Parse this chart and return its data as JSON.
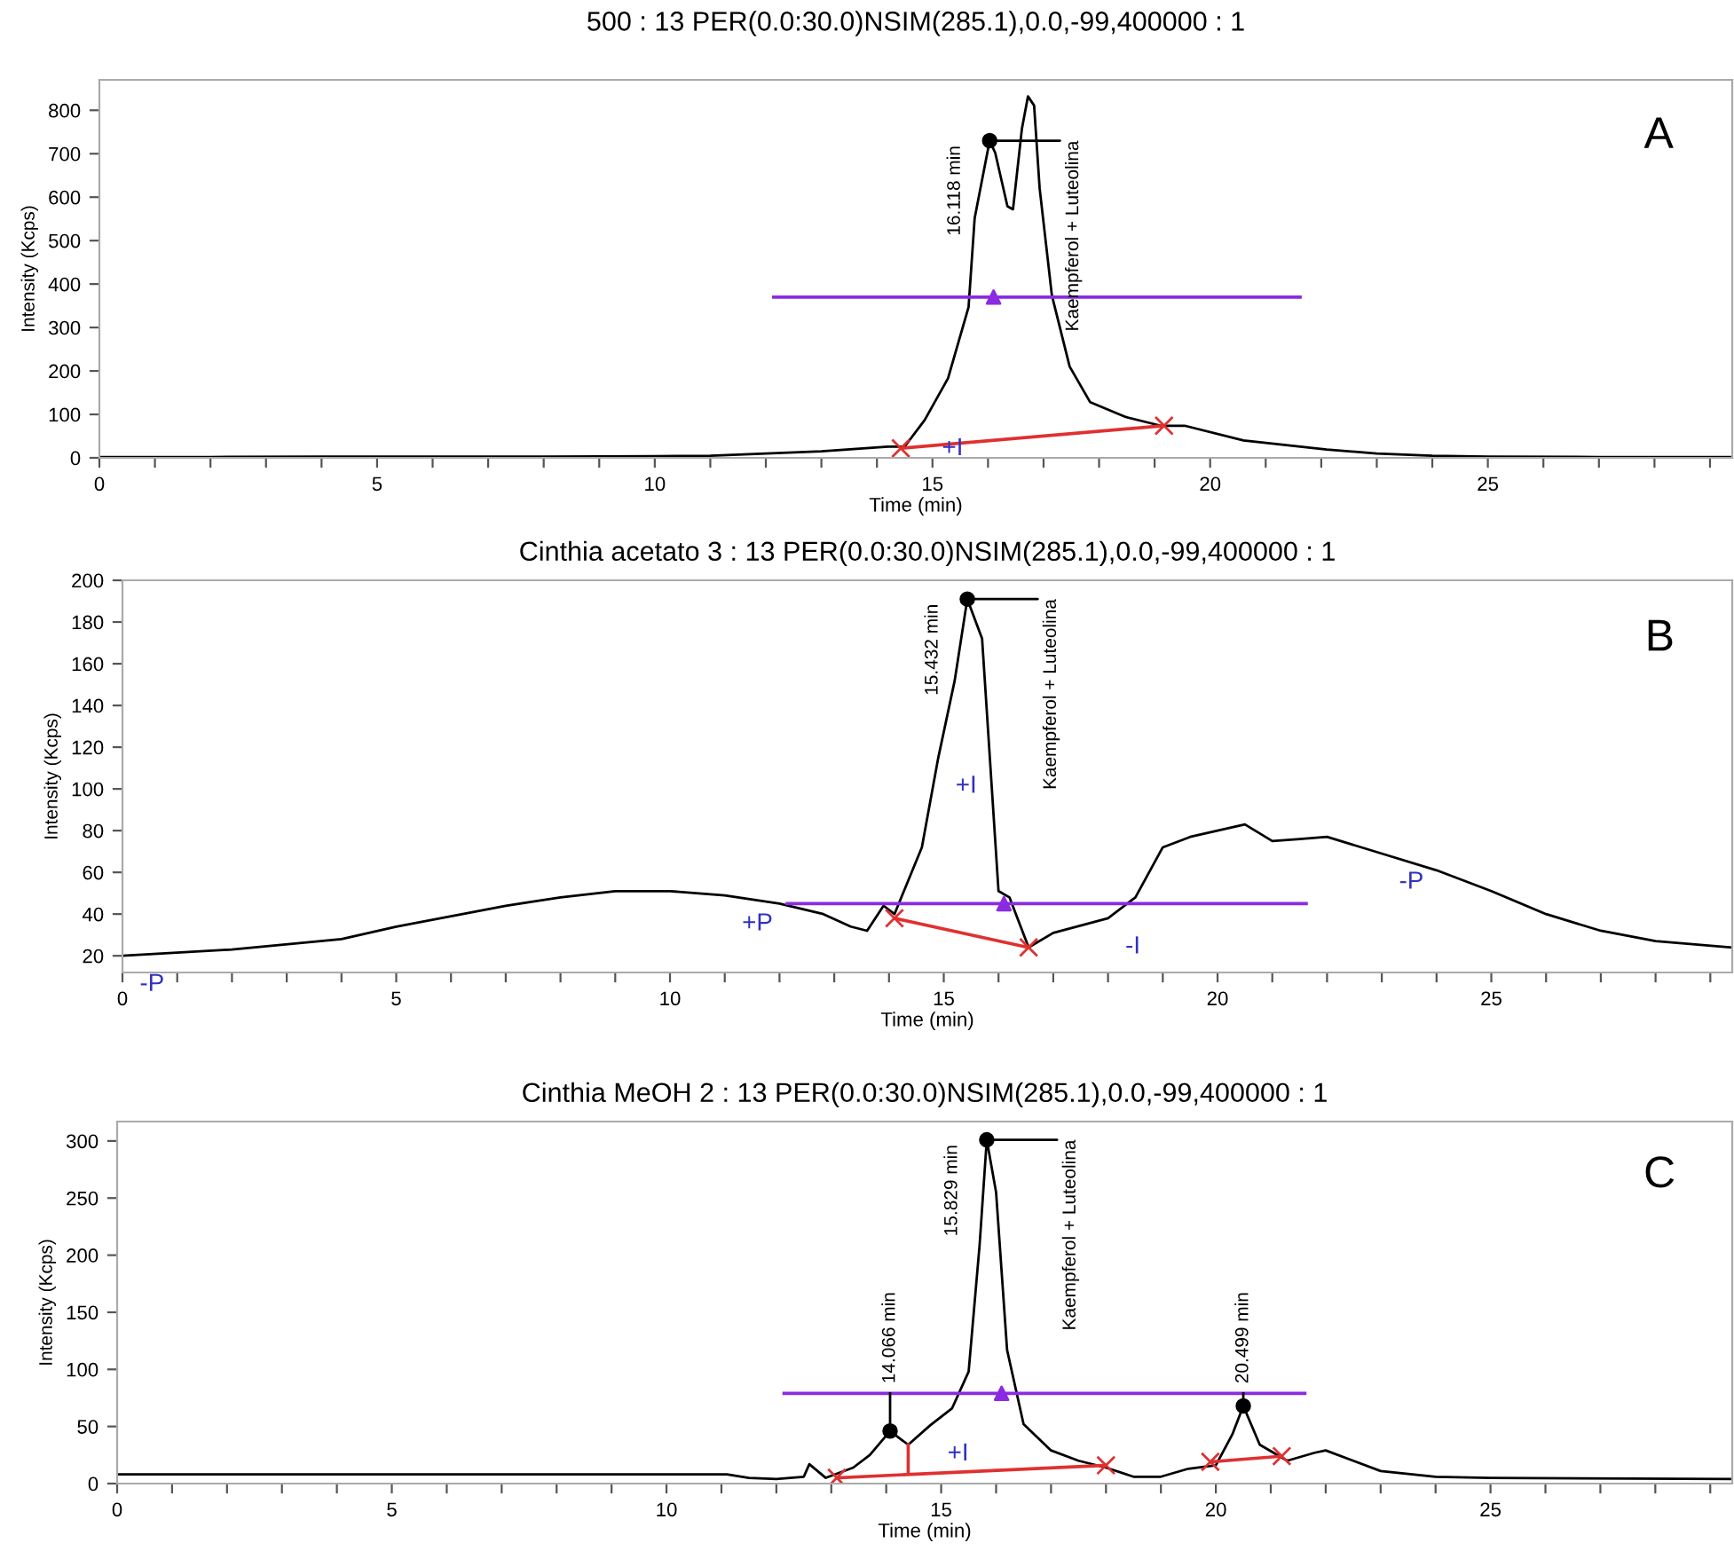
{
  "chart_data": [
    {
      "type": "line",
      "title": "500 : 13 PER(0.0:30.0)NSIM(285.1),0.0,-99,400000 : 1",
      "xlabel": "Time (min)",
      "ylabel": "Intensity (Kcps)",
      "xlim": [
        0,
        29.4
      ],
      "ylim": [
        0,
        870
      ],
      "xticks": [
        0,
        {
          "value": 1,
          "label": null
        },
        {
          "value": 2,
          "label": null
        },
        {
          "value": 3,
          "label": null
        },
        {
          "value": 4,
          "label": null
        },
        5,
        {
          "value": 6,
          "label": null
        },
        {
          "value": 7,
          "label": null
        },
        {
          "value": 8,
          "label": null
        },
        {
          "value": 9,
          "label": null
        },
        10,
        {
          "value": 11,
          "label": null
        },
        {
          "value": 12,
          "label": null
        },
        {
          "value": 13,
          "label": null
        },
        {
          "value": 14,
          "label": null
        },
        15,
        {
          "value": 16,
          "label": null
        },
        {
          "value": 17,
          "label": null
        },
        {
          "value": 18,
          "label": null
        },
        {
          "value": 19,
          "label": null
        },
        20,
        {
          "value": 21,
          "label": null
        },
        {
          "value": 22,
          "label": null
        },
        {
          "value": 23,
          "label": null
        },
        {
          "value": 24,
          "label": null
        },
        25,
        {
          "value": 26,
          "label": null
        },
        {
          "value": 27,
          "label": null
        },
        {
          "value": 28,
          "label": null
        },
        {
          "value": 29,
          "label": null
        }
      ],
      "yticks": [
        0,
        100,
        200,
        300,
        400,
        500,
        600,
        700,
        800
      ],
      "grid": false,
      "legend": false,
      "series": [
        {
          "color": "#000000",
          "marker": "none",
          "x": [
            0,
            2,
            4,
            6,
            8,
            10,
            11,
            12,
            13,
            14.2,
            14.5,
            14.86,
            15.28,
            15.65,
            15.76,
            16.03,
            16.13,
            16.35,
            16.45,
            16.61,
            16.72,
            16.83,
            16.93,
            17.15,
            17.47,
            17.84,
            18.48,
            19.11,
            19.54,
            20.6,
            22.1,
            23,
            24,
            25,
            27,
            29.4
          ],
          "values": [
            2,
            2,
            3,
            3,
            3,
            4,
            5,
            10,
            15,
            26,
            26,
            87,
            183,
            347,
            552,
            730,
            702,
            579,
            572,
            757,
            832,
            811,
            620,
            374,
            210,
            128,
            94,
            74,
            74,
            40,
            19,
            10,
            5,
            3,
            2,
            2
          ]
        },
        {
          "color": "#e03030",
          "marker": "cross",
          "x": [
            14.43,
            19.17
          ],
          "values": [
            22,
            74
          ]
        },
        {
          "color": "#8a2be2",
          "marker": "none",
          "x": [
            12.14,
            21.62
          ],
          "values": [
            370,
            370
          ]
        },
        {
          "type": "scatter",
          "color": "#000000",
          "marker": "circle",
          "x": [
            16.03
          ],
          "values": [
            730
          ]
        },
        {
          "type": "scatter",
          "color": "#8a2be2",
          "marker": "triangle",
          "x": [
            16.1
          ],
          "values": [
            370
          ]
        }
      ],
      "annotations": [
        "A",
        {
          "text": "16.118 min",
          "x": 16.03,
          "y": 730
        },
        {
          "text": "Kaempferol + Luteolina",
          "x": 16.03,
          "y": 730
        },
        {
          "text": "+I",
          "x": 14.86,
          "y": 87
        }
      ]
    },
    {
      "type": "line",
      "title": "Cinthia acetato 3 : 13 PER(0.0:30.0)NSIM(285.1),0.0,-99,400000 : 1",
      "xlabel": "Time (min)",
      "ylabel": "Intensity (Kcps)",
      "xlim": [
        0,
        29.4
      ],
      "ylim": [
        12,
        200
      ],
      "xticks": [
        0,
        {
          "value": 1,
          "label": null
        },
        {
          "value": 2,
          "label": null
        },
        {
          "value": 3,
          "label": null
        },
        {
          "value": 4,
          "label": null
        },
        5,
        {
          "value": 6,
          "label": null
        },
        {
          "value": 7,
          "label": null
        },
        {
          "value": 8,
          "label": null
        },
        {
          "value": 9,
          "label": null
        },
        10,
        {
          "value": 11,
          "label": null
        },
        {
          "value": 12,
          "label": null
        },
        {
          "value": 13,
          "label": null
        },
        {
          "value": 14,
          "label": null
        },
        15,
        {
          "value": 16,
          "label": null
        },
        {
          "value": 17,
          "label": null
        },
        {
          "value": 18,
          "label": null
        },
        {
          "value": 19,
          "label": null
        },
        20,
        {
          "value": 21,
          "label": null
        },
        {
          "value": 22,
          "label": null
        },
        {
          "value": 23,
          "label": null
        },
        {
          "value": 24,
          "label": null
        },
        25,
        {
          "value": 26,
          "label": null
        },
        {
          "value": 27,
          "label": null
        },
        {
          "value": 28,
          "label": null
        },
        {
          "value": 29,
          "label": null
        }
      ],
      "yticks": [
        20,
        40,
        60,
        80,
        100,
        120,
        140,
        160,
        180,
        200
      ],
      "grid": false,
      "legend": false,
      "series": [
        {
          "color": "#000000",
          "marker": "none",
          "x": [
            0,
            2,
            4,
            5,
            6,
            7,
            8,
            9,
            10,
            11,
            12,
            12.8,
            13.3,
            13.6,
            13.9,
            14.1,
            14.6,
            14.9,
            15.2,
            15.43,
            15.7,
            16.0,
            16.2,
            16.55,
            17,
            18,
            18.5,
            19,
            19.5,
            20,
            20.5,
            21,
            21.5,
            22,
            23,
            24,
            25,
            26,
            27,
            28,
            29.4
          ],
          "values": [
            20,
            23,
            28,
            34,
            39,
            44,
            48,
            51,
            51,
            49,
            45,
            40,
            34,
            32,
            44,
            40,
            72,
            115,
            152,
            191,
            172,
            51,
            48,
            24,
            31,
            38,
            48,
            72,
            77,
            80,
            83,
            75,
            76,
            77,
            69,
            61,
            51,
            40,
            32,
            27,
            24
          ]
        },
        {
          "color": "#e03030",
          "marker": "cross",
          "x": [
            14.1,
            16.55
          ],
          "values": [
            38,
            24
          ]
        },
        {
          "color": "#8a2be2",
          "marker": "none",
          "x": [
            12.14,
            21.62
          ],
          "values": [
            45,
            45
          ]
        },
        {
          "type": "scatter",
          "color": "#000000",
          "marker": "circle",
          "x": [
            15.43
          ],
          "values": [
            191
          ]
        },
        {
          "type": "scatter",
          "color": "#8a2be2",
          "marker": "triangle",
          "x": [
            16.1
          ],
          "values": [
            45
          ]
        }
      ],
      "annotations": [
        "B",
        {
          "text": "15.432 min",
          "x": 15.43,
          "y": 191
        },
        {
          "text": "Kaempferol + Luteolina",
          "x": 15.43,
          "y": 191
        },
        {
          "text": "-P",
          "x": 0,
          "y": 20
        },
        {
          "text": "+P",
          "x": 11,
          "y": 49
        },
        {
          "text": "+I",
          "x": 14.9,
          "y": 115
        },
        {
          "text": "-I",
          "x": 18,
          "y": 38
        },
        {
          "text": "-P",
          "x": 23,
          "y": 69
        }
      ]
    },
    {
      "type": "line",
      "title": "Cinthia MeOH 2 : 13 PER(0.0:30.0)NSIM(285.1),0.0,-99,400000 : 1",
      "xlabel": "Time (min)",
      "ylabel": "Intensity (Kcps)",
      "xlim": [
        0,
        29.4
      ],
      "ylim": [
        0,
        317
      ],
      "xticks": [
        0,
        {
          "value": 1,
          "label": null
        },
        {
          "value": 2,
          "label": null
        },
        {
          "value": 3,
          "label": null
        },
        {
          "value": 4,
          "label": null
        },
        5,
        {
          "value": 6,
          "label": null
        },
        {
          "value": 7,
          "label": null
        },
        {
          "value": 8,
          "label": null
        },
        {
          "value": 9,
          "label": null
        },
        10,
        {
          "value": 11,
          "label": null
        },
        {
          "value": 12,
          "label": null
        },
        {
          "value": 13,
          "label": null
        },
        {
          "value": 14,
          "label": null
        },
        15,
        {
          "value": 16,
          "label": null
        },
        {
          "value": 17,
          "label": null
        },
        {
          "value": 18,
          "label": null
        },
        {
          "value": 19,
          "label": null
        },
        20,
        {
          "value": 21,
          "label": null
        },
        {
          "value": 22,
          "label": null
        },
        {
          "value": 23,
          "label": null
        },
        {
          "value": 24,
          "label": null
        },
        25,
        {
          "value": 26,
          "label": null
        },
        {
          "value": 27,
          "label": null
        },
        {
          "value": 28,
          "label": null
        },
        {
          "value": 29,
          "label": null
        }
      ],
      "yticks": [
        0,
        50,
        100,
        150,
        200,
        250,
        300
      ],
      "grid": false,
      "legend": false,
      "series": [
        {
          "color": "#000000",
          "marker": "none",
          "x": [
            0,
            3,
            6,
            9,
            11.1,
            11.5,
            12,
            12.5,
            12.6,
            12.9,
            13.4,
            13.7,
            14.07,
            14.4,
            14.8,
            15.2,
            15.5,
            15.7,
            15.83,
            16.0,
            16.2,
            16.5,
            17,
            17.5,
            18,
            18.5,
            19,
            19.5,
            20.0,
            20.3,
            20.5,
            20.8,
            21.3,
            21.8,
            22,
            22.5,
            23,
            24,
            25,
            29.4
          ],
          "values": [
            8,
            8,
            8,
            8,
            8,
            5,
            4,
            6,
            17,
            5,
            14,
            25,
            46,
            34,
            51,
            66,
            98,
            209,
            301,
            255,
            117,
            52,
            29,
            20,
            14,
            6,
            6,
            13,
            16,
            43,
            68,
            34,
            20,
            27,
            29,
            20,
            11,
            6,
            5,
            4
          ]
        },
        {
          "color": "#e03030",
          "marker": "cross",
          "x": [
            13.1,
            18.0
          ],
          "values": [
            5,
            16
          ]
        },
        {
          "color": "#e03030",
          "marker": "cross",
          "x": [
            19.9,
            21.2
          ],
          "values": [
            19,
            24
          ]
        },
        {
          "color": "#e03030",
          "marker": "none",
          "x": [
            14.4,
            14.4
          ],
          "values": [
            10,
            34
          ]
        },
        {
          "color": "#8a2be2",
          "marker": "none",
          "x": [
            12.14,
            21.62
          ],
          "values": [
            79,
            79
          ]
        },
        {
          "type": "scatter",
          "color": "#000000",
          "marker": "circle",
          "x": [
            14.07,
            15.83,
            20.5
          ],
          "values": [
            46,
            301,
            68
          ]
        },
        {
          "type": "scatter",
          "color": "#8a2be2",
          "marker": "triangle",
          "x": [
            16.1
          ],
          "values": [
            79
          ]
        }
      ],
      "annotations": [
        "C",
        {
          "text": "14.066 min",
          "x": 14.07,
          "y": 46
        },
        {
          "text": "15.829 min",
          "x": 15.83,
          "y": 301
        },
        {
          "text": "Kaempferol + Luteolina",
          "x": 15.83,
          "y": 301
        },
        {
          "text": "20.499 min",
          "x": 20.5,
          "y": 68
        },
        {
          "text": "+I",
          "x": 14.8,
          "y": 51
        }
      ]
    }
  ]
}
